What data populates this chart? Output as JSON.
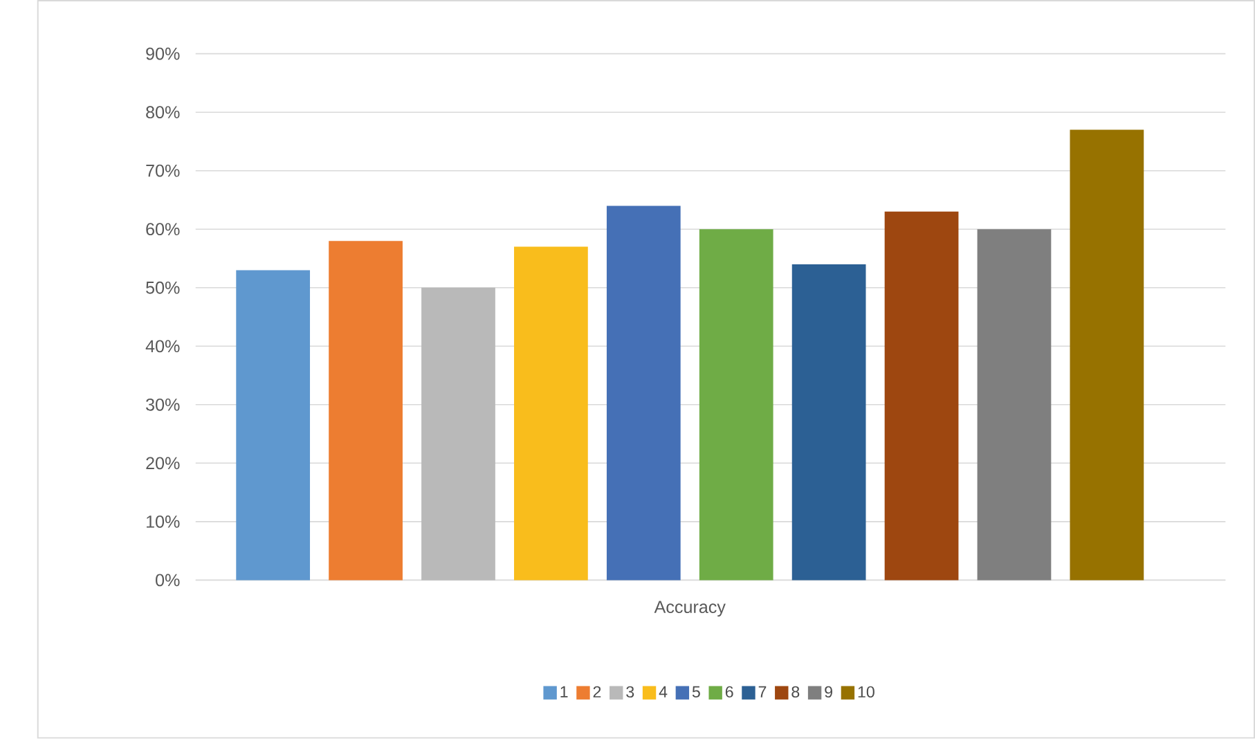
{
  "chart_data": {
    "type": "bar",
    "categories": [
      "Accuracy"
    ],
    "series": [
      {
        "name": "1",
        "color": "#5f98cf",
        "values": [
          53
        ]
      },
      {
        "name": "2",
        "color": "#ed7d31",
        "values": [
          58
        ]
      },
      {
        "name": "3",
        "color": "#b9b9b9",
        "values": [
          50
        ]
      },
      {
        "name": "4",
        "color": "#f9bd1c",
        "values": [
          57
        ]
      },
      {
        "name": "5",
        "color": "#4570b6",
        "values": [
          64
        ]
      },
      {
        "name": "6",
        "color": "#6fac46",
        "values": [
          60
        ]
      },
      {
        "name": "7",
        "color": "#2c6094",
        "values": [
          54
        ]
      },
      {
        "name": "8",
        "color": "#9e4710",
        "values": [
          63
        ]
      },
      {
        "name": "9",
        "color": "#7f7f7f",
        "values": [
          60
        ]
      },
      {
        "name": "10",
        "color": "#977200",
        "values": [
          77
        ]
      }
    ],
    "ylim": [
      0,
      90
    ],
    "yticks": [
      {
        "value": 0,
        "label": "0%"
      },
      {
        "value": 10,
        "label": "10%"
      },
      {
        "value": 20,
        "label": "20%"
      },
      {
        "value": 30,
        "label": "30%"
      },
      {
        "value": 40,
        "label": "40%"
      },
      {
        "value": 50,
        "label": "50%"
      },
      {
        "value": 60,
        "label": "60%"
      },
      {
        "value": 70,
        "label": "70%"
      },
      {
        "value": 80,
        "label": "80%"
      },
      {
        "value": 90,
        "label": "90%"
      }
    ],
    "grid": "y",
    "legend": "bottom"
  }
}
